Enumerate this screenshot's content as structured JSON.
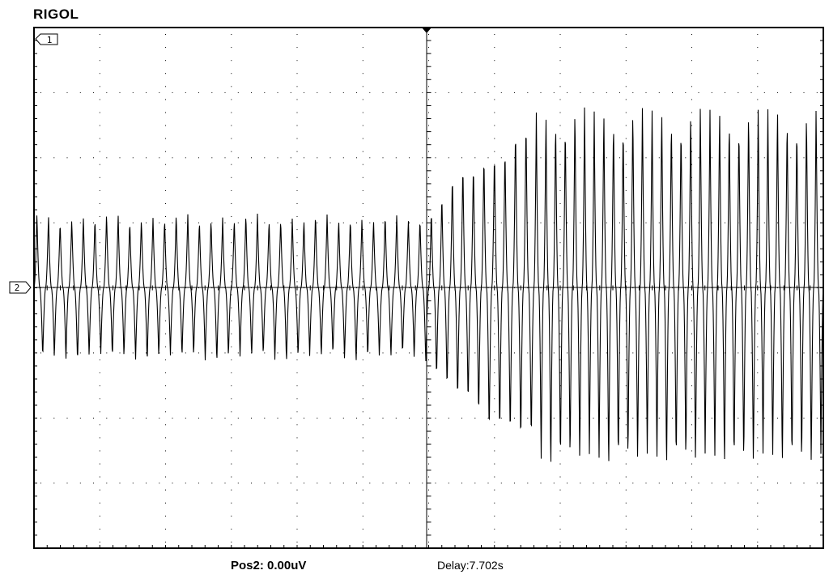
{
  "header": {
    "brand": "RIGOL"
  },
  "markers": {
    "channel1": "1",
    "channel2": "2"
  },
  "footer": {
    "position": "Pos2:  0.00uV",
    "delay": "Delay:7.702s"
  },
  "chart_data": {
    "type": "line",
    "x_divisions": 12,
    "y_divisions": 8,
    "grid": true,
    "series": [
      {
        "channel": 2,
        "segments": [
          {
            "divisions": [
              0,
              6
            ],
            "cycles": 34,
            "amplitude_div": 1.1
          },
          {
            "divisions": [
              6,
              7.6
            ],
            "cycles": 10,
            "amplitude_div_from": 1.1,
            "amplitude_div_to": 2.6
          },
          {
            "divisions": [
              7.6,
              12
            ],
            "cycles": 30,
            "amplitude_div": 2.75
          }
        ]
      }
    ],
    "colors": {
      "trace": "#000000",
      "grid": "#000000",
      "background": "#ffffff"
    }
  }
}
